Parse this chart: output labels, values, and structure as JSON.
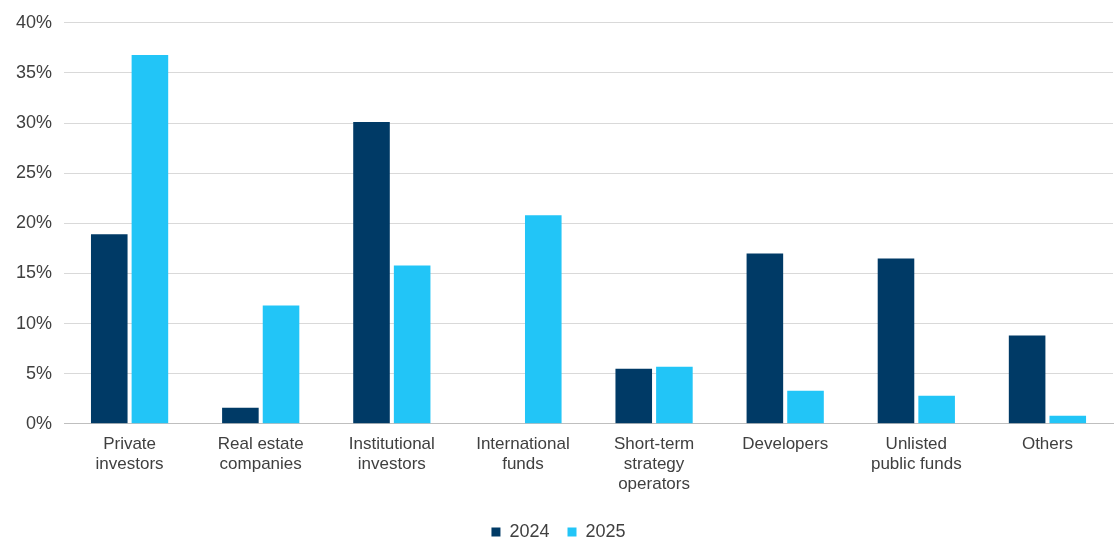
{
  "chart_data": {
    "type": "bar",
    "categories": [
      "Private investors",
      "Real estate companies",
      "Institutional investors",
      "International funds",
      "Short-term strategy operators",
      "Developers",
      "Unlisted public funds",
      "Others"
    ],
    "series": [
      {
        "name": "2024",
        "color": "#003a66",
        "values": [
          18.9,
          1.6,
          30.1,
          0,
          5.5,
          17.0,
          16.5,
          8.8
        ]
      },
      {
        "name": "2025",
        "color": "#22c5f7",
        "values": [
          36.8,
          11.8,
          15.8,
          20.8,
          5.7,
          3.3,
          2.8,
          0.8
        ]
      }
    ],
    "ylim": [
      0,
      40
    ],
    "yticks": [
      {
        "value": 0,
        "label": "0%"
      },
      {
        "value": 5,
        "label": "5%"
      },
      {
        "value": 10,
        "label": "10%"
      },
      {
        "value": 15,
        "label": "15%"
      },
      {
        "value": 20,
        "label": "20%"
      },
      {
        "value": 25,
        "label": "25%"
      },
      {
        "value": 30,
        "label": "30%"
      },
      {
        "value": 35,
        "label": "35%"
      },
      {
        "value": 40,
        "label": "40%"
      }
    ],
    "grid": "y",
    "legend": "bottom"
  }
}
